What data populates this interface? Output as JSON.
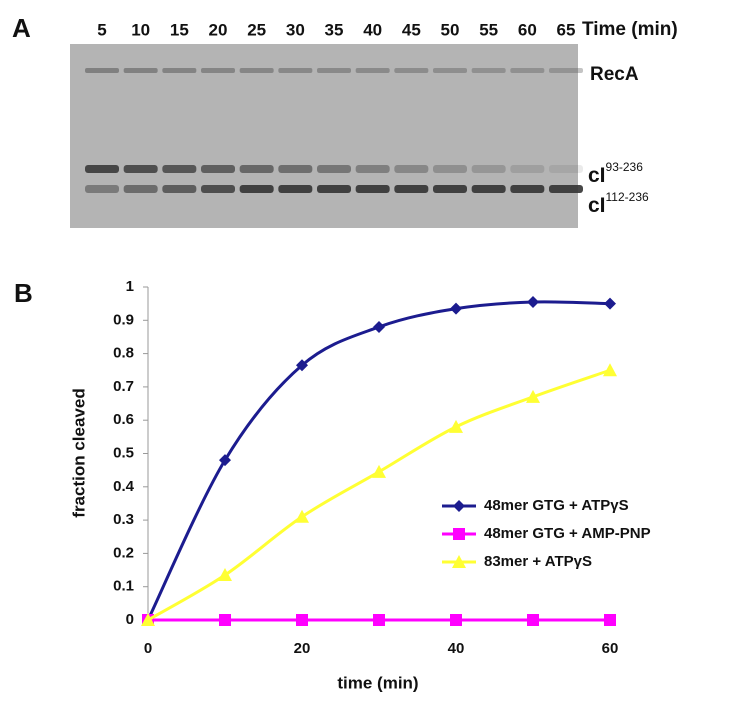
{
  "panel_a": {
    "label": "A",
    "lanes": [
      5,
      10,
      15,
      20,
      25,
      30,
      35,
      40,
      45,
      50,
      55,
      60,
      65
    ],
    "lane_axis_label": "Time (min)",
    "recA_label": "RecA",
    "band_labels": [
      {
        "name": "cI",
        "sup": "93-236"
      },
      {
        "name": "cI",
        "sup": "112-236"
      }
    ]
  },
  "chart_data": {
    "type": "line",
    "panel_label": "B",
    "x_label": "time (min)",
    "y_label": "fraction cleaved",
    "x": [
      0,
      10,
      20,
      30,
      40,
      50,
      60
    ],
    "xlim": [
      0,
      60
    ],
    "xticks": [
      0,
      20,
      40,
      60
    ],
    "ylim": [
      0,
      1
    ],
    "yticks": [
      0,
      0.1,
      0.2,
      0.3,
      0.4,
      0.5,
      0.6,
      0.7,
      0.8,
      0.9,
      1
    ],
    "grid": false,
    "legend": "right",
    "smooth": true,
    "series": [
      {
        "name": "48mer GTG + ATPγS",
        "color": "#1c1c8f",
        "marker": "diamond",
        "values": [
          0,
          0.48,
          0.765,
          0.88,
          0.935,
          0.955,
          0.95
        ]
      },
      {
        "name": "48mer GTG + AMP-PNP",
        "color": "#ff00ff",
        "marker": "square",
        "values": [
          0,
          0,
          0,
          0,
          0,
          0,
          0
        ]
      },
      {
        "name": "83mer + ATPγS",
        "color": "#ffff33",
        "marker": "triangle",
        "values": [
          0,
          0.135,
          0.31,
          0.445,
          0.58,
          0.67,
          0.75
        ]
      }
    ]
  }
}
